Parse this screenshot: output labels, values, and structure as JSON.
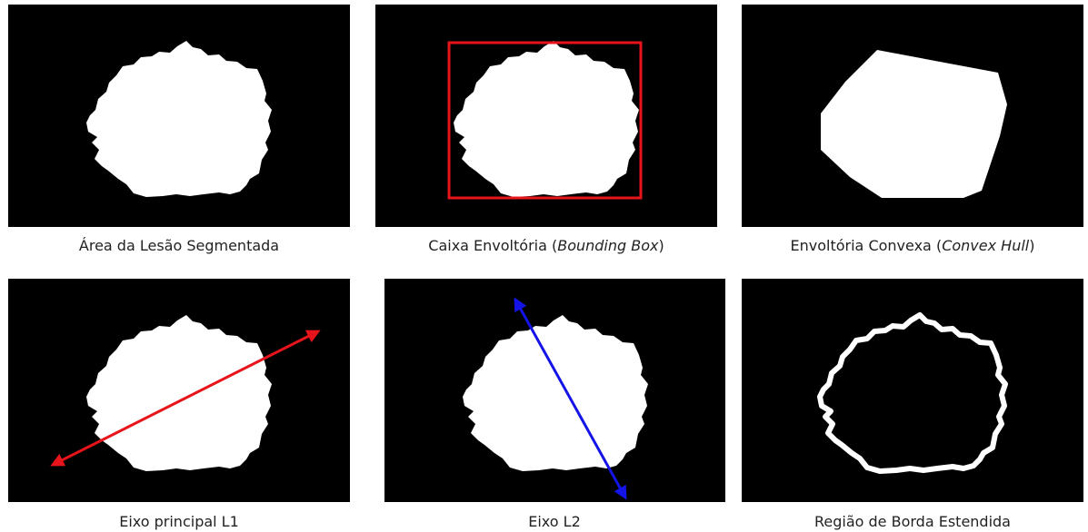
{
  "panels": [
    {
      "caption": [
        "Área da Lesão Segmentada"
      ]
    },
    {
      "caption": [
        "Caixa Envoltória (",
        "Bounding Box",
        ")"
      ]
    },
    {
      "caption": [
        "Envoltória Convexa (",
        "Convex Hull",
        ")"
      ]
    },
    {
      "caption": [
        "Eixo principal L1"
      ]
    },
    {
      "caption": [
        "Eixo L2"
      ]
    },
    {
      "caption": [
        "Região de Borda Estendida"
      ]
    }
  ]
}
